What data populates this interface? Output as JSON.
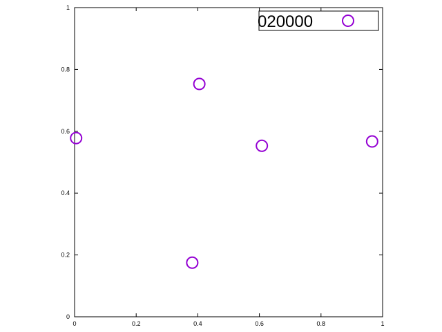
{
  "chart_data": {
    "type": "scatter",
    "title": "",
    "xlabel": "",
    "ylabel": "",
    "xlim": [
      0,
      1
    ],
    "ylim": [
      0,
      1
    ],
    "xticks": [
      "0",
      "0.2",
      "0.4",
      "0.6",
      "0.8",
      "1"
    ],
    "yticks": [
      "0",
      "0.2",
      "0.4",
      "0.6",
      "0.8",
      "1"
    ],
    "grid": false,
    "legend_position": "top-right",
    "series": [
      {
        "name": "020000",
        "marker": "open-circle",
        "color": "#9400d3",
        "points": [
          {
            "x": 0.005,
            "y": 0.578
          },
          {
            "x": 0.405,
            "y": 0.753
          },
          {
            "x": 0.608,
            "y": 0.553
          },
          {
            "x": 0.966,
            "y": 0.567
          },
          {
            "x": 0.382,
            "y": 0.175
          }
        ]
      }
    ]
  }
}
